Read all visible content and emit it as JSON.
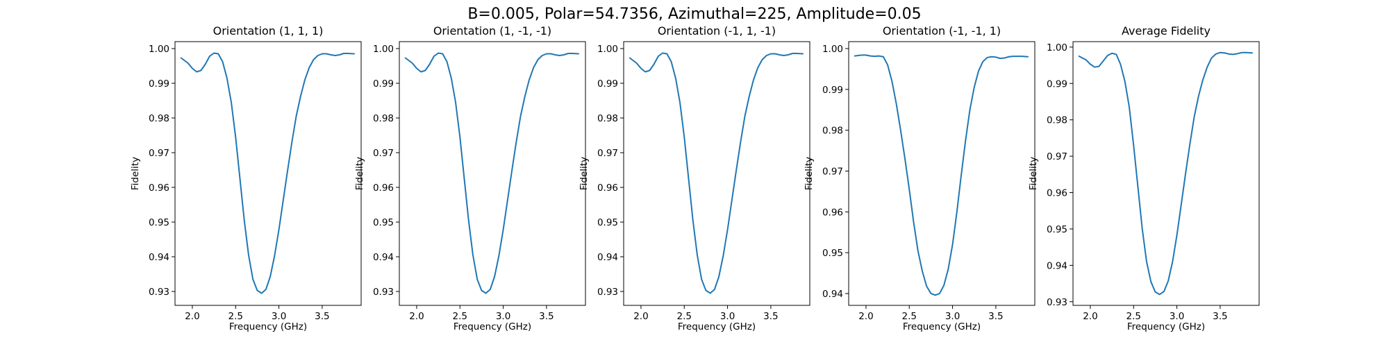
{
  "figure": {
    "suptitle": "B=0.005, Polar=54.7356, Azimuthal=225, Amplitude=0.05"
  },
  "chart_data": [
    {
      "type": "line",
      "title": "Orientation (1, 1, 1)",
      "xlabel": "Frequency (GHz)",
      "ylabel": "Fidelity",
      "xlim": [
        1.8,
        3.95
      ],
      "ylim": [
        0.926,
        1.002
      ],
      "xticks": [
        "2.0",
        "2.5",
        "3.0",
        "3.5"
      ],
      "yticks": [
        "0.93",
        "0.94",
        "0.95",
        "0.96",
        "0.97",
        "0.98",
        "0.99",
        "1.00"
      ],
      "grid": false,
      "series": [
        {
          "color": "#1f77b4",
          "x": [
            1.87,
            1.95,
            2.0,
            2.05,
            2.1,
            2.15,
            2.2,
            2.25,
            2.3,
            2.35,
            2.4,
            2.45,
            2.5,
            2.55,
            2.6,
            2.65,
            2.7,
            2.75,
            2.8,
            2.85,
            2.9,
            2.95,
            3.0,
            3.05,
            3.1,
            3.15,
            3.2,
            3.25,
            3.3,
            3.35,
            3.4,
            3.45,
            3.5,
            3.55,
            3.6,
            3.65,
            3.7,
            3.75,
            3.8,
            3.87
          ],
          "y": [
            0.9973,
            0.9958,
            0.9943,
            0.9933,
            0.9937,
            0.9955,
            0.9978,
            0.9987,
            0.9985,
            0.9962,
            0.9915,
            0.9845,
            0.9745,
            0.9625,
            0.9505,
            0.9405,
            0.9335,
            0.9303,
            0.9295,
            0.9306,
            0.9343,
            0.9403,
            0.9478,
            0.9563,
            0.9648,
            0.973,
            0.9805,
            0.9862,
            0.991,
            0.9945,
            0.9968,
            0.998,
            0.9985,
            0.9985,
            0.9982,
            0.998,
            0.9982,
            0.9986,
            0.9986,
            0.9985
          ]
        }
      ]
    },
    {
      "type": "line",
      "title": "Orientation (1, -1, -1)",
      "xlabel": "Frequency (GHz)",
      "ylabel": "Fidelity",
      "xlim": [
        1.8,
        3.95
      ],
      "ylim": [
        0.926,
        1.002
      ],
      "xticks": [
        "2.0",
        "2.5",
        "3.0",
        "3.5"
      ],
      "yticks": [
        "0.93",
        "0.94",
        "0.95",
        "0.96",
        "0.97",
        "0.98",
        "0.99",
        "1.00"
      ],
      "grid": false,
      "series": [
        {
          "color": "#1f77b4",
          "x": [
            1.87,
            1.95,
            2.0,
            2.05,
            2.1,
            2.15,
            2.2,
            2.25,
            2.3,
            2.35,
            2.4,
            2.45,
            2.5,
            2.55,
            2.6,
            2.65,
            2.7,
            2.75,
            2.8,
            2.85,
            2.9,
            2.95,
            3.0,
            3.05,
            3.1,
            3.15,
            3.2,
            3.25,
            3.3,
            3.35,
            3.4,
            3.45,
            3.5,
            3.55,
            3.6,
            3.65,
            3.7,
            3.75,
            3.8,
            3.87
          ],
          "y": [
            0.9973,
            0.9958,
            0.9943,
            0.9933,
            0.9937,
            0.9955,
            0.9978,
            0.9987,
            0.9985,
            0.9962,
            0.9915,
            0.9845,
            0.9745,
            0.9625,
            0.9505,
            0.9405,
            0.9335,
            0.9303,
            0.9295,
            0.9306,
            0.9343,
            0.9403,
            0.9478,
            0.9563,
            0.9648,
            0.973,
            0.9805,
            0.9862,
            0.991,
            0.9945,
            0.9968,
            0.998,
            0.9985,
            0.9985,
            0.9982,
            0.998,
            0.9982,
            0.9986,
            0.9986,
            0.9985
          ]
        }
      ]
    },
    {
      "type": "line",
      "title": "Orientation (-1, 1, -1)",
      "xlabel": "Frequency (GHz)",
      "ylabel": "Fidelity",
      "xlim": [
        1.8,
        3.95
      ],
      "ylim": [
        0.926,
        1.002
      ],
      "xticks": [
        "2.0",
        "2.5",
        "3.0",
        "3.5"
      ],
      "yticks": [
        "0.93",
        "0.94",
        "0.95",
        "0.96",
        "0.97",
        "0.98",
        "0.99",
        "1.00"
      ],
      "grid": false,
      "series": [
        {
          "color": "#1f77b4",
          "x": [
            1.87,
            1.95,
            2.0,
            2.05,
            2.1,
            2.15,
            2.2,
            2.25,
            2.3,
            2.35,
            2.4,
            2.45,
            2.5,
            2.55,
            2.6,
            2.65,
            2.7,
            2.75,
            2.8,
            2.85,
            2.9,
            2.95,
            3.0,
            3.05,
            3.1,
            3.15,
            3.2,
            3.25,
            3.3,
            3.35,
            3.4,
            3.45,
            3.5,
            3.55,
            3.6,
            3.65,
            3.7,
            3.75,
            3.8,
            3.87
          ],
          "y": [
            0.9973,
            0.9958,
            0.9943,
            0.9933,
            0.9937,
            0.9955,
            0.9978,
            0.9987,
            0.9985,
            0.9962,
            0.9915,
            0.9845,
            0.9745,
            0.9625,
            0.9505,
            0.9405,
            0.9335,
            0.9303,
            0.9295,
            0.9306,
            0.9343,
            0.9403,
            0.9478,
            0.9563,
            0.9648,
            0.973,
            0.9805,
            0.9862,
            0.991,
            0.9945,
            0.9968,
            0.998,
            0.9985,
            0.9985,
            0.9982,
            0.998,
            0.9982,
            0.9986,
            0.9986,
            0.9985
          ]
        }
      ]
    },
    {
      "type": "line",
      "title": "Orientation (-1, -1, 1)",
      "xlabel": "Frequency (GHz)",
      "ylabel": "Fidelity",
      "xlim": [
        1.8,
        3.95
      ],
      "ylim": [
        0.9371,
        1.0017
      ],
      "xticks": [
        "2.0",
        "2.5",
        "3.0",
        "3.5"
      ],
      "yticks": [
        "0.94",
        "0.95",
        "0.96",
        "0.97",
        "0.98",
        "0.99",
        "1.00"
      ],
      "grid": false,
      "series": [
        {
          "color": "#1f77b4",
          "x": [
            1.87,
            1.95,
            2.0,
            2.05,
            2.1,
            2.15,
            2.2,
            2.25,
            2.3,
            2.35,
            2.4,
            2.45,
            2.5,
            2.55,
            2.6,
            2.65,
            2.7,
            2.75,
            2.8,
            2.85,
            2.9,
            2.95,
            3.0,
            3.05,
            3.1,
            3.15,
            3.2,
            3.25,
            3.3,
            3.35,
            3.4,
            3.45,
            3.5,
            3.55,
            3.6,
            3.65,
            3.7,
            3.75,
            3.8,
            3.87
          ],
          "y": [
            0.9982,
            0.9984,
            0.9984,
            0.9982,
            0.9981,
            0.9982,
            0.998,
            0.996,
            0.992,
            0.9865,
            0.98,
            0.973,
            0.9655,
            0.9575,
            0.9505,
            0.9455,
            0.9418,
            0.94,
            0.9396,
            0.94,
            0.942,
            0.946,
            0.952,
            0.96,
            0.969,
            0.9775,
            0.985,
            0.9905,
            0.9945,
            0.9968,
            0.9978,
            0.998,
            0.9979,
            0.9976,
            0.9977,
            0.998,
            0.9981,
            0.9981,
            0.9981,
            0.998
          ]
        }
      ]
    },
    {
      "type": "line",
      "title": "Average Fidelity",
      "xlabel": "Frequency (GHz)",
      "ylabel": "Fidelity",
      "xlim": [
        1.8,
        3.95
      ],
      "ylim": [
        0.929,
        1.0015
      ],
      "xticks": [
        "2.0",
        "2.5",
        "3.0",
        "3.5"
      ],
      "yticks": [
        "0.93",
        "0.94",
        "0.95",
        "0.96",
        "0.97",
        "0.98",
        "0.99",
        "1.00"
      ],
      "grid": false,
      "series": [
        {
          "color": "#1f77b4",
          "x": [
            1.87,
            1.95,
            2.0,
            2.05,
            2.1,
            2.15,
            2.2,
            2.25,
            2.3,
            2.35,
            2.4,
            2.45,
            2.5,
            2.55,
            2.6,
            2.65,
            2.7,
            2.75,
            2.8,
            2.85,
            2.9,
            2.95,
            3.0,
            3.05,
            3.1,
            3.15,
            3.2,
            3.25,
            3.3,
            3.35,
            3.4,
            3.45,
            3.5,
            3.55,
            3.6,
            3.65,
            3.7,
            3.75,
            3.8,
            3.87
          ],
          "y": [
            0.9975,
            0.9965,
            0.9953,
            0.9945,
            0.9947,
            0.9962,
            0.9977,
            0.9983,
            0.998,
            0.9952,
            0.9905,
            0.9835,
            0.973,
            0.9615,
            0.95,
            0.941,
            0.9355,
            0.9327,
            0.932,
            0.9328,
            0.9357,
            0.941,
            0.9483,
            0.9567,
            0.9652,
            0.9733,
            0.9808,
            0.9865,
            0.991,
            0.9945,
            0.997,
            0.9981,
            0.9985,
            0.9984,
            0.9981,
            0.998,
            0.9982,
            0.9985,
            0.9985,
            0.9984
          ]
        }
      ]
    }
  ]
}
